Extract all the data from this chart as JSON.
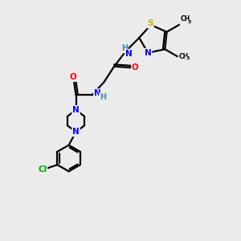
{
  "background_color": "#ebebeb",
  "bond_color": "#000000",
  "atom_colors": {
    "N": "#0000FF",
    "O": "#FF0000",
    "S": "#CCAA00",
    "Cl": "#00AA00",
    "C": "#000000",
    "H": "#4488AA"
  },
  "figsize": [
    3.0,
    3.0
  ],
  "dpi": 100,
  "lw": 1.6,
  "fontsize": 7.5
}
